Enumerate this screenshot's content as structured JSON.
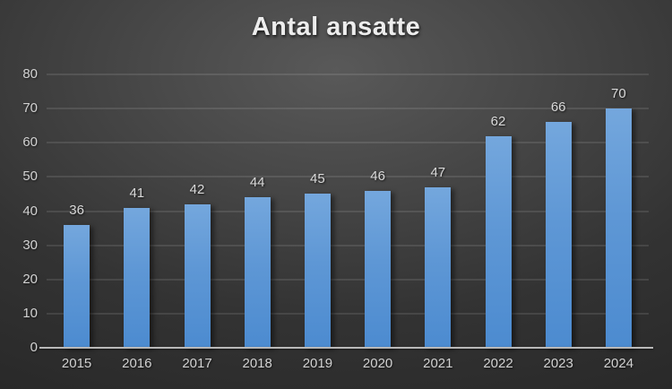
{
  "title": "Antal ansatte",
  "chart_data": {
    "type": "bar",
    "title": "Antal ansatte",
    "categories": [
      "2015",
      "2016",
      "2017",
      "2018",
      "2019",
      "2020",
      "2021",
      "2022",
      "2023",
      "2024"
    ],
    "values": [
      36,
      41,
      42,
      44,
      45,
      46,
      47,
      62,
      66,
      70
    ],
    "xlabel": "",
    "ylabel": "",
    "ylim": [
      0,
      80
    ],
    "ytick_step": 10,
    "ytick_labels": [
      "0",
      "10",
      "20",
      "30",
      "40",
      "50",
      "60",
      "70",
      "80"
    ],
    "grid": true,
    "legend": false,
    "data_labels": true,
    "colors": {
      "bar_top": "#74a7dd",
      "bar_bottom": "#4c8bd0",
      "background_center": "#595959",
      "background_edge": "#232323",
      "grid_line_alpha": "rgba(255,255,255,0.10)",
      "axis_line": "#b9b9b9",
      "tick_label": "#d2d2d2",
      "value_label": "#dadada",
      "title_text": "#ededed"
    }
  }
}
